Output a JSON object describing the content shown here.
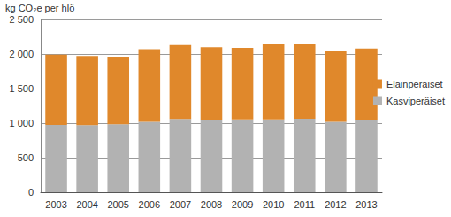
{
  "chart_data": {
    "type": "bar",
    "stacked": true,
    "y_label": "kg CO₂e per hlö",
    "categories": [
      "2003",
      "2004",
      "2005",
      "2006",
      "2007",
      "2008",
      "2009",
      "2010",
      "2011",
      "2012",
      "2013"
    ],
    "series": [
      {
        "name": "Kasviperäiset",
        "color": "#b2b2b2",
        "values": [
          975,
          970,
          985,
          1020,
          1060,
          1040,
          1055,
          1055,
          1065,
          1020,
          1045
        ]
      },
      {
        "name": "Eläinperäiset",
        "color": "#e0882b",
        "values": [
          1015,
          1000,
          975,
          1050,
          1070,
          1060,
          1035,
          1085,
          1075,
          1020,
          1035
        ]
      }
    ],
    "ylim": [
      0,
      2500
    ],
    "yticks": [
      0,
      500,
      {
        "value": 1000,
        "label": "1 000"
      },
      {
        "value": 1500,
        "label": "1 500"
      },
      {
        "value": 2000,
        "label": "2 000"
      },
      {
        "value": 2500,
        "label": "2 500"
      }
    ],
    "grid": true,
    "legend": "right"
  }
}
